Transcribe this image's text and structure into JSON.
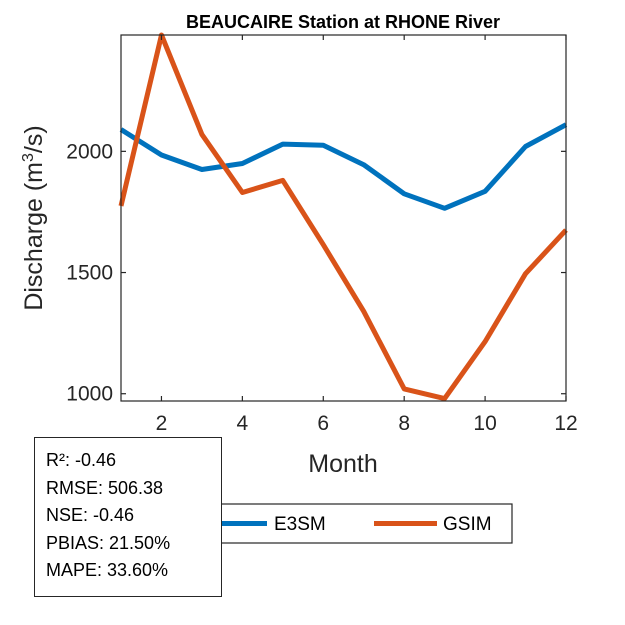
{
  "chart_data": {
    "type": "line",
    "title": "BEAUCAIRE  Station at  RHONE  River",
    "xlabel": "Month",
    "ylabel_main": "Discharge (m",
    "ylabel_sup": "3",
    "ylabel_tail": "/s)",
    "xlim": [
      1,
      12
    ],
    "ylim": [
      970,
      2480
    ],
    "xticks": [
      2,
      4,
      6,
      8,
      10,
      12
    ],
    "yticks": [
      1000,
      1500,
      2000
    ],
    "x": [
      1,
      2,
      3,
      4,
      5,
      6,
      7,
      8,
      9,
      10,
      11,
      12
    ],
    "series": [
      {
        "name": "E3SM",
        "color": "#0072BD",
        "values": [
          2090,
          1985,
          1925,
          1950,
          2030,
          2025,
          1945,
          1825,
          1765,
          1835,
          2020,
          2110
        ]
      },
      {
        "name": "GSIM",
        "color": "#D95319",
        "values": [
          1775,
          2480,
          2070,
          1830,
          1880,
          1615,
          1340,
          1020,
          980,
          1215,
          1495,
          1675
        ]
      }
    ],
    "legend_position": "bottom"
  },
  "stats": [
    "R²: -0.46",
    "RMSE: 506.38",
    "NSE: -0.46",
    "PBIAS: 21.50%",
    "MAPE: 33.60%"
  ]
}
